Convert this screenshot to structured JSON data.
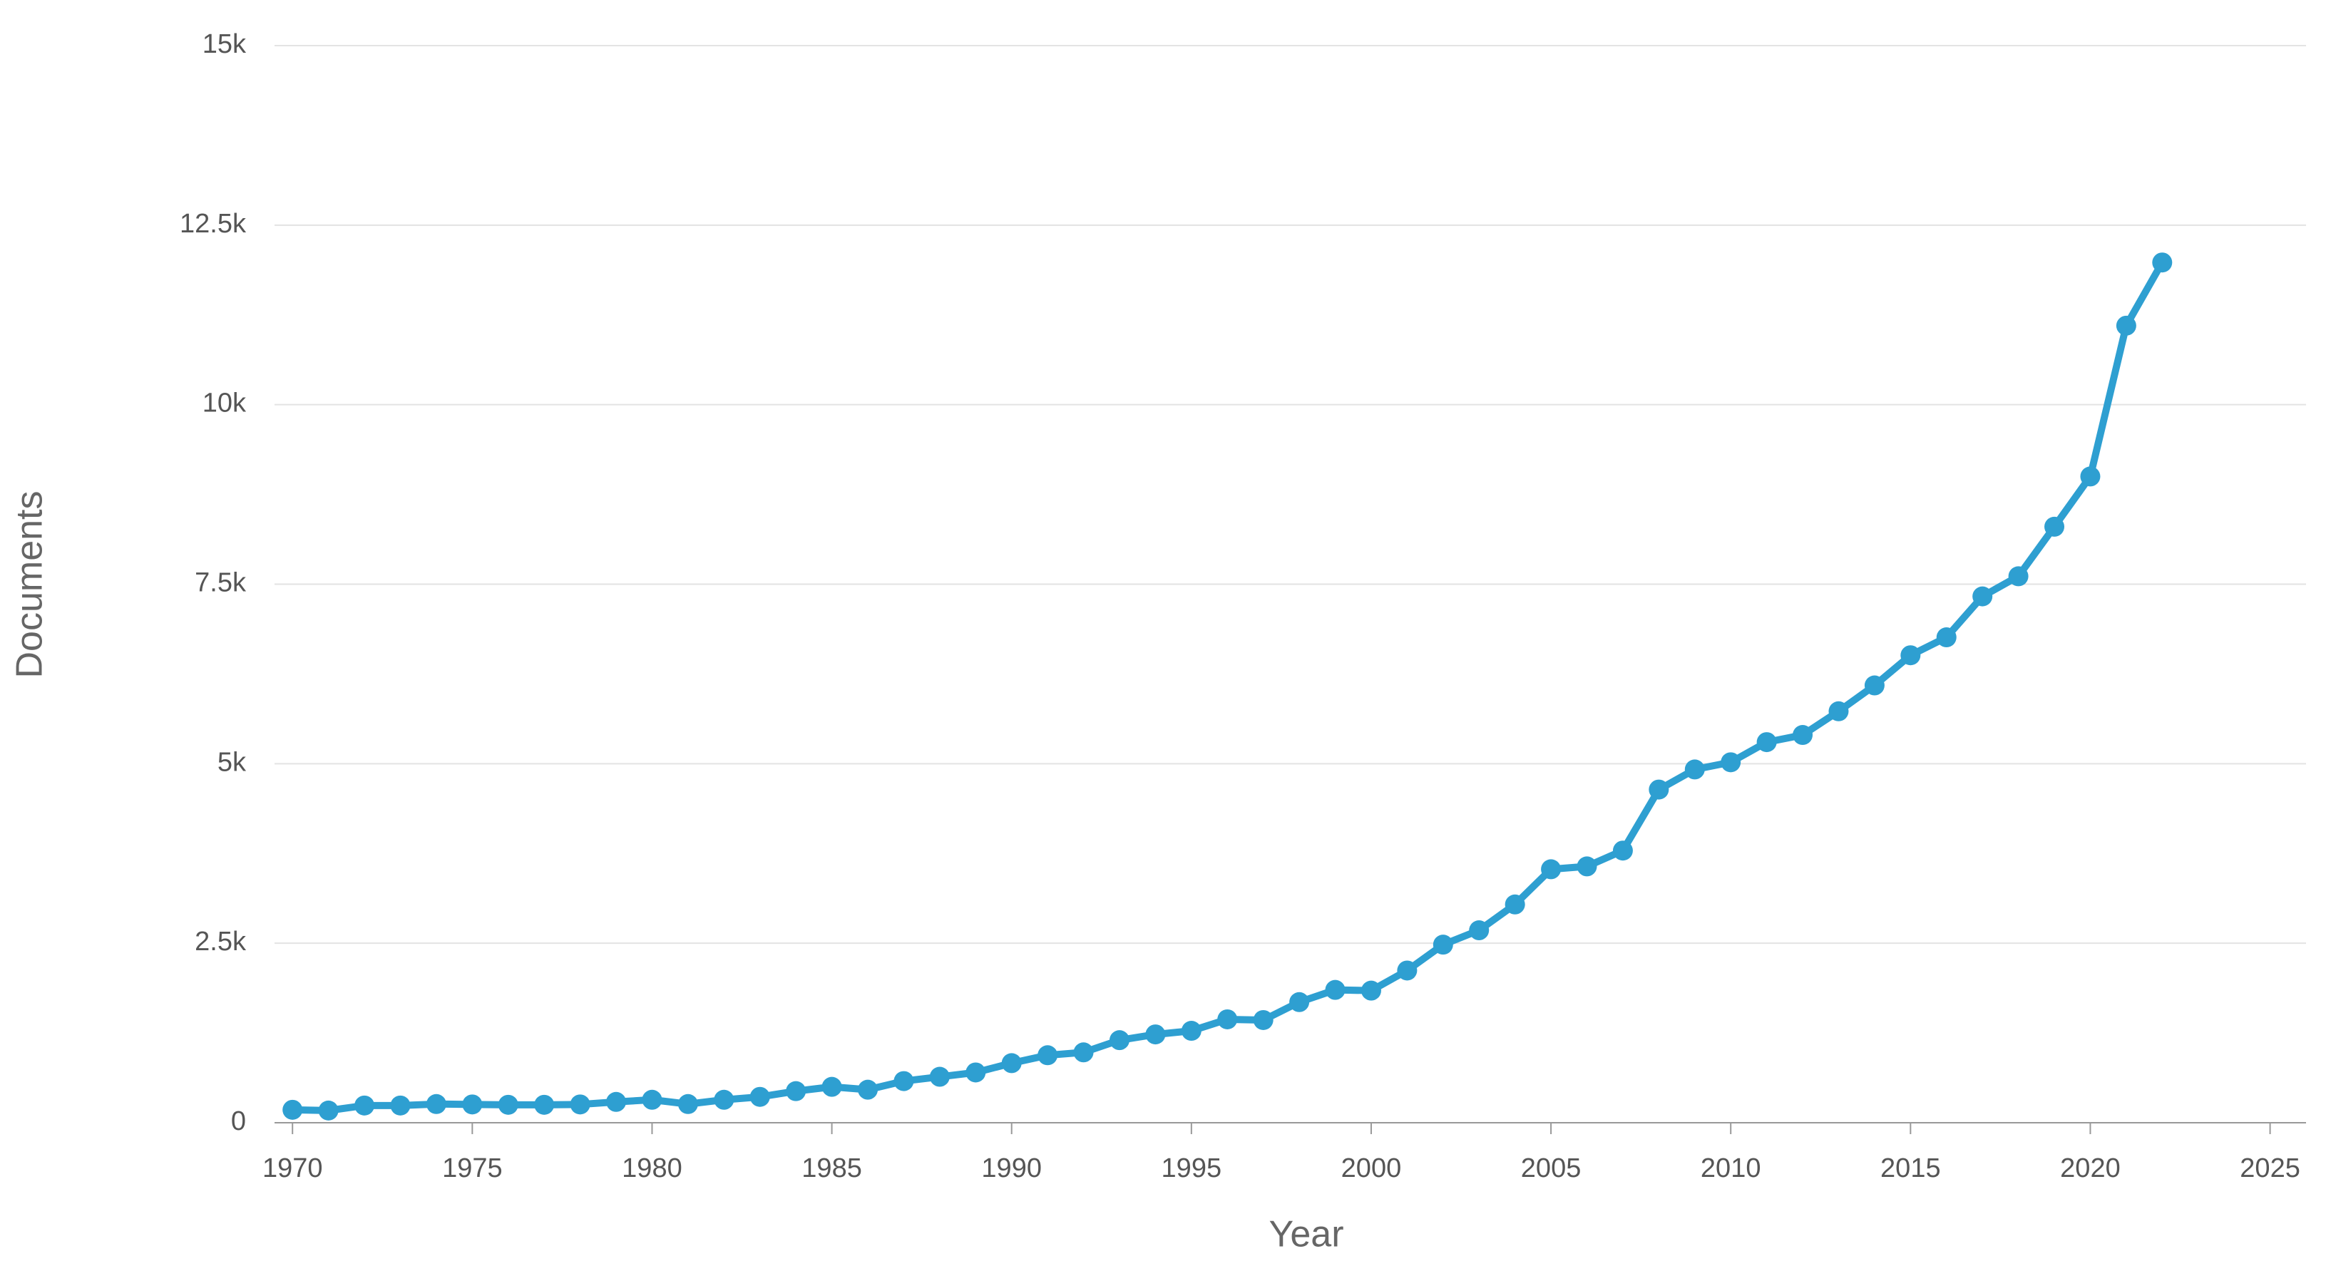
{
  "chart_data": {
    "type": "line",
    "x_label": "Year",
    "y_label": "Documents",
    "color": "#2e9fd1",
    "grid": true,
    "xlim": [
      1969.5,
      2026
    ],
    "xticks": [
      1970,
      1975,
      1980,
      1985,
      1990,
      1995,
      2000,
      2005,
      2010,
      2015,
      2020,
      2025
    ],
    "ylim": [
      0,
      15000
    ],
    "yticks": [
      0,
      {
        "value": 2500,
        "label": "2.5k"
      },
      {
        "value": 5000,
        "label": "5k"
      },
      {
        "value": 7500,
        "label": "7.5k"
      },
      {
        "value": 10000,
        "label": "10k"
      },
      {
        "value": 12500,
        "label": "12.5k"
      },
      {
        "value": 15000,
        "label": "15k"
      }
    ],
    "x": [
      1970,
      1971,
      1972,
      1973,
      1974,
      1975,
      1976,
      1977,
      1978,
      1979,
      1980,
      1981,
      1982,
      1983,
      1984,
      1985,
      1986,
      1987,
      1988,
      1989,
      1990,
      1991,
      1992,
      1993,
      1994,
      1995,
      1996,
      1997,
      1998,
      1999,
      2000,
      2001,
      2002,
      2003,
      2004,
      2005,
      2006,
      2007,
      2008,
      2009,
      2010,
      2011,
      2012,
      2013,
      2014,
      2015,
      2016,
      2017,
      2018,
      2019,
      2020,
      2021,
      2022
    ],
    "values": [
      180,
      170,
      240,
      240,
      260,
      255,
      250,
      250,
      255,
      290,
      320,
      260,
      320,
      360,
      440,
      500,
      460,
      580,
      640,
      700,
      830,
      940,
      980,
      1150,
      1230,
      1280,
      1440,
      1430,
      1680,
      1850,
      1840,
      2120,
      2480,
      2680,
      3040,
      3530,
      3570,
      3790,
      4640,
      4920,
      5020,
      5300,
      5400,
      5730,
      6090,
      6510,
      6760,
      7330,
      7610,
      8300,
      9000,
      11100,
      11980
    ]
  }
}
